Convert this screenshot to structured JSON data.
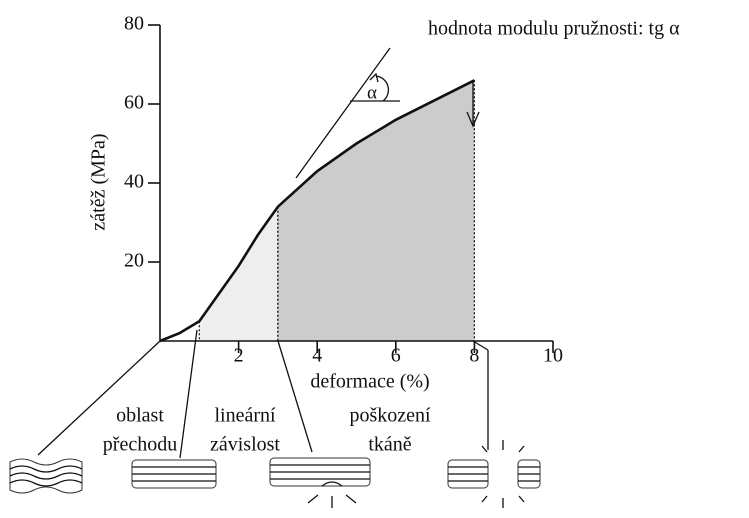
{
  "chart_data": {
    "type": "line",
    "title": "hodnota modulu pružnosti: tg α",
    "angle_label": "α",
    "x_label": "deformace (%)",
    "y_label": "zátěž (MPa)",
    "x": [
      0,
      0.5,
      1,
      1.5,
      2,
      2.5,
      3,
      4,
      5,
      6,
      7,
      8
    ],
    "values": [
      0,
      2,
      5,
      12,
      19,
      27,
      34,
      43,
      50,
      56,
      61,
      66
    ],
    "color": "#111111",
    "xlim": [
      0,
      10
    ],
    "xticks": [
      2,
      4,
      6,
      8,
      10
    ],
    "ylim": [
      0,
      80
    ],
    "yticks": [
      20,
      40,
      60,
      80
    ],
    "regions": [
      {
        "from": 1,
        "to": 3,
        "color": "#eeeeee"
      },
      {
        "from": 3,
        "to": 8,
        "color": "#cccccc"
      }
    ],
    "region_labels": [
      [
        "oblast",
        "přechodu"
      ],
      [
        "lineární",
        "závislost"
      ],
      [
        "poškození",
        "tkáně"
      ]
    ]
  }
}
